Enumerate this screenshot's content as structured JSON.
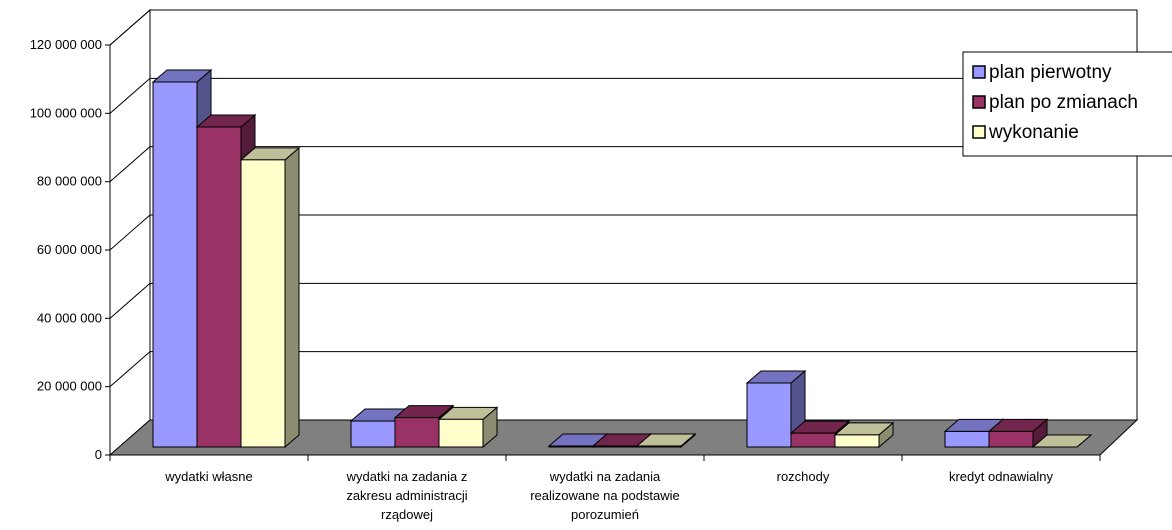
{
  "chart_data": {
    "type": "bar",
    "title": "",
    "xlabel": "",
    "ylabel": "",
    "ylim": [
      0,
      120000000
    ],
    "yticks": [
      "0",
      "20 000 000",
      "40 000 000",
      "60 000 000",
      "80 000 000",
      "100 000 000",
      "120 000 000"
    ],
    "categories": [
      [
        "wydatki własne"
      ],
      [
        "wydatki na zadania z",
        "zakresu administracji",
        "rządowej"
      ],
      [
        "wydatki na zadania",
        "realizowane na podstawie",
        "porozumień"
      ],
      [
        "rozchody"
      ],
      [
        "kredyt odnawialny"
      ]
    ],
    "series": [
      {
        "name": "plan pierwotny",
        "color": "#9999ff",
        "values": [
          105500000,
          7500000,
          300000,
          18500000,
          4500000
        ]
      },
      {
        "name": "plan po zmianach",
        "color": "#993366",
        "values": [
          92500000,
          8500000,
          300000,
          4000000,
          4500000
        ]
      },
      {
        "name": "wykonanie",
        "color": "#ffffcc",
        "values": [
          83000000,
          8000000,
          300000,
          3500000,
          0
        ]
      }
    ],
    "legend_position": "top-right",
    "grid": true,
    "style": "3d-clustered-column"
  }
}
